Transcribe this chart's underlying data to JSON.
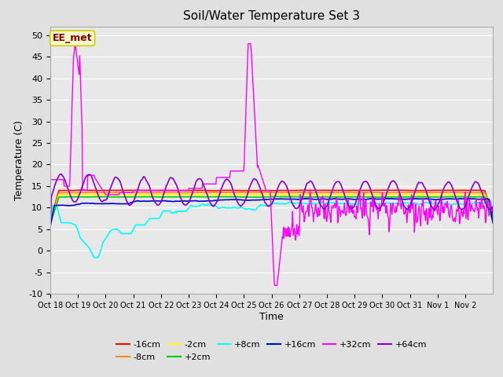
{
  "title": "Soil/Water Temperature Set 3",
  "xlabel": "Time",
  "ylabel": "Temperature (C)",
  "ylim": [
    -10,
    52
  ],
  "yticks": [
    -10,
    -5,
    0,
    5,
    10,
    15,
    20,
    25,
    30,
    35,
    40,
    45,
    50
  ],
  "background_color": "#e0e0e0",
  "plot_bg_color": "#e8e8e8",
  "annotation_text": "EE_met",
  "annotation_bg": "#ffffcc",
  "annotation_border": "#cccc00",
  "annotation_text_color": "#880000",
  "series": [
    {
      "label": "-16cm",
      "color": "#ff0000",
      "lw": 1.2
    },
    {
      "label": "-8cm",
      "color": "#ff8800",
      "lw": 1.2
    },
    {
      "label": "-2cm",
      "color": "#ffff00",
      "lw": 1.2
    },
    {
      "label": "+2cm",
      "color": "#00cc00",
      "lw": 1.2
    },
    {
      "label": "+8cm",
      "color": "#00ffff",
      "lw": 1.2
    },
    {
      "label": "+16cm",
      "color": "#0000cc",
      "lw": 1.2
    },
    {
      "label": "+32cm",
      "color": "#ff00ff",
      "lw": 1.0
    },
    {
      "label": "+64cm",
      "color": "#8800cc",
      "lw": 1.2
    }
  ],
  "x_tick_labels": [
    "Oct 18",
    "Oct 19",
    "Oct 20",
    "Oct 21",
    "Oct 22",
    "Oct 23",
    "Oct 24",
    "Oct 25",
    "Oct 26",
    "Oct 27",
    "Oct 28",
    "Oct 29",
    "Oct 30",
    "Oct 31",
    "Nov 1",
    "Nov 2"
  ],
  "n_days": 16,
  "pts_per_day": 48
}
